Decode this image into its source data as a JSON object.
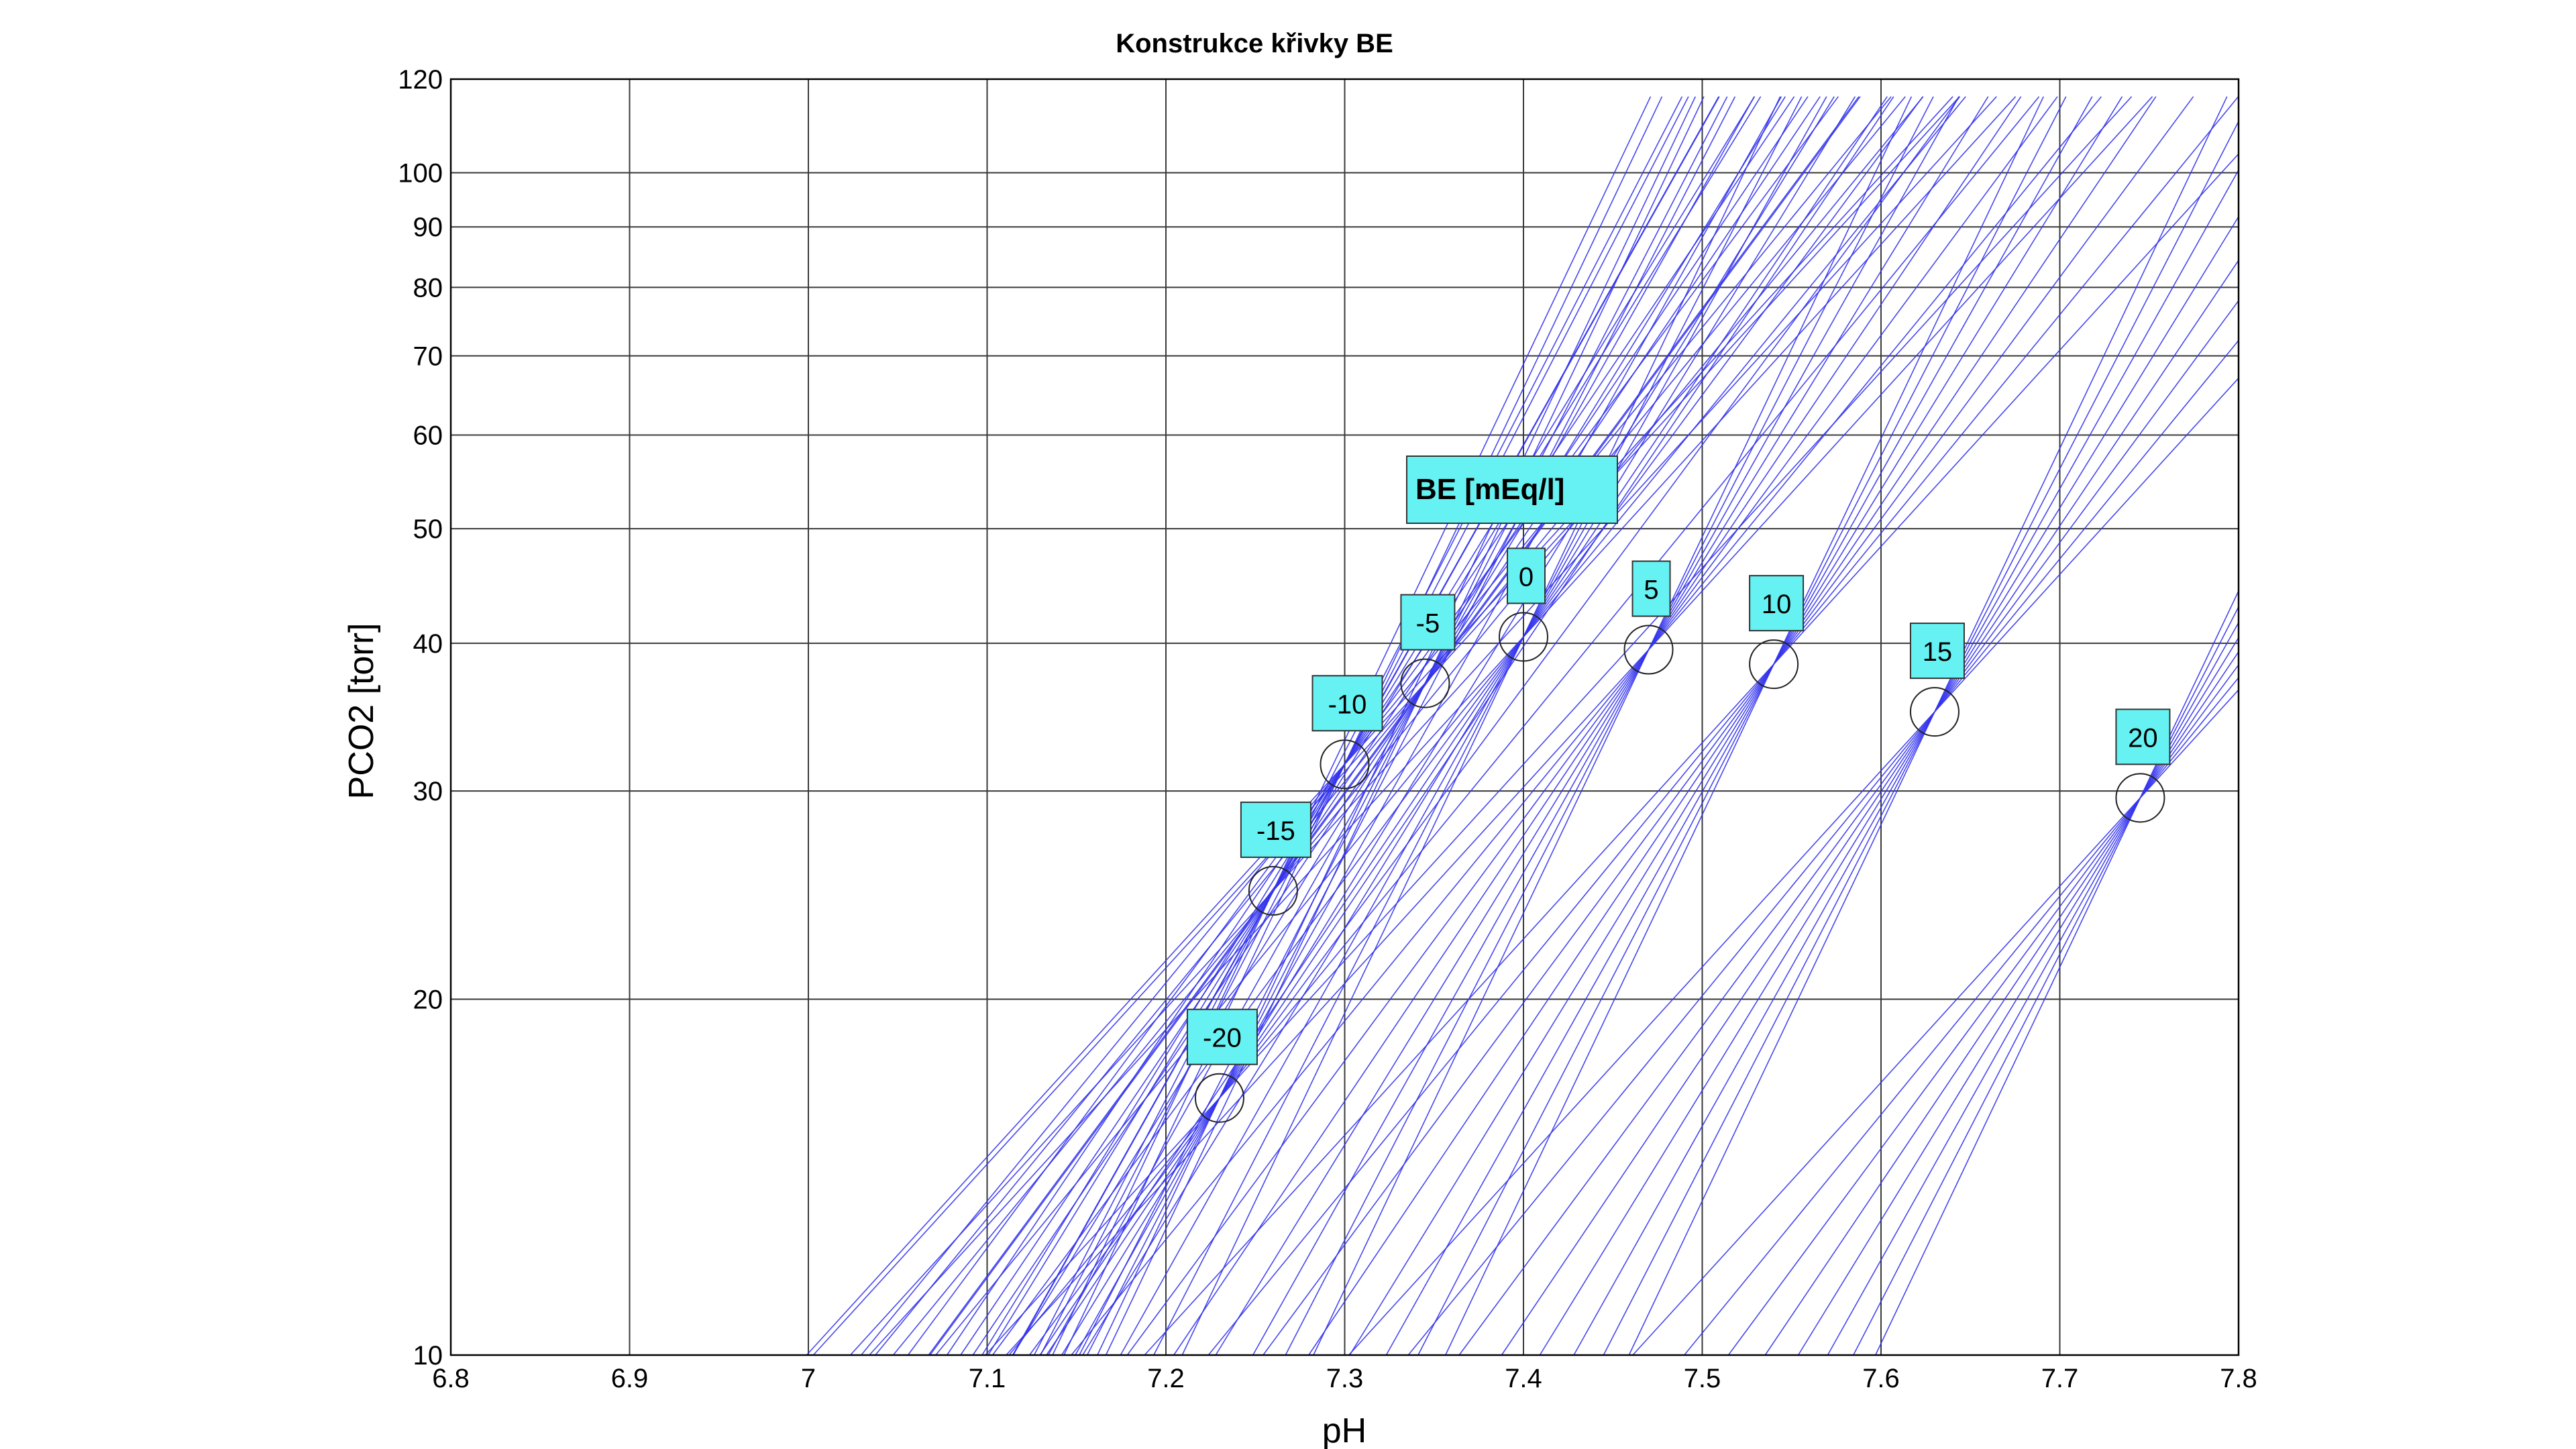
{
  "chart_data": {
    "type": "line",
    "title": "Konstrukce křivky BE",
    "xlabel": "pH",
    "ylabel": "PCO2 [torr]",
    "xlim": [
      6.8,
      7.8
    ],
    "ylim": [
      10,
      120
    ],
    "yscale": "log",
    "grid": true,
    "x_ticks": [
      6.8,
      6.9,
      7,
      7.1,
      7.2,
      7.3,
      7.4,
      7.5,
      7.6,
      7.7,
      7.8
    ],
    "x_tick_labels": [
      "6.8",
      "6.9",
      "7",
      "7.1",
      "7.2",
      "7.3",
      "7.4",
      "7.5",
      "7.6",
      "7.7",
      "7.8"
    ],
    "y_ticks": [
      10,
      20,
      30,
      40,
      50,
      60,
      70,
      80,
      90,
      100,
      120
    ],
    "y_tick_labels": [
      "10",
      "20",
      "30",
      "40",
      "50",
      "60",
      "70",
      "80",
      "90",
      "100",
      "120"
    ],
    "legend_label": "BE [mEq/l]",
    "base_excess_points": [
      {
        "label": "-20",
        "ph": 7.23,
        "pco2": 16.5
      },
      {
        "label": "-15",
        "ph": 7.26,
        "pco2": 24.7
      },
      {
        "label": "-10",
        "ph": 7.3,
        "pco2": 31.6
      },
      {
        "label": "-5",
        "ph": 7.345,
        "pco2": 37.0
      },
      {
        "label": "0",
        "ph": 7.4,
        "pco2": 40.5
      },
      {
        "label": "5",
        "ph": 7.47,
        "pco2": 39.5
      },
      {
        "label": "10",
        "ph": 7.54,
        "pco2": 38.4
      },
      {
        "label": "15",
        "ph": 7.63,
        "pco2": 35.0
      },
      {
        "label": "20",
        "ph": 7.745,
        "pco2": 29.6
      }
    ],
    "buffer_line_slopes": [
      -0.72,
      -0.78,
      -0.85,
      -0.93,
      -1.02,
      -1.12,
      -1.24,
      -1.38
    ],
    "pco2_curve_top": 116
  }
}
